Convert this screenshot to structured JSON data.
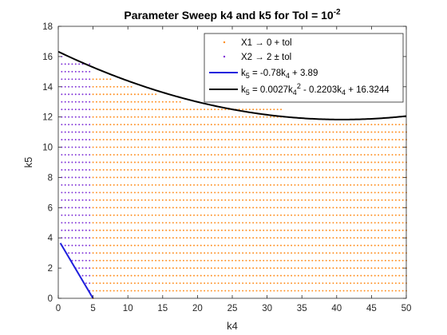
{
  "chart_data": {
    "type": "scatter",
    "title": {
      "main": "Parameter Sweep k4 and k5 for Tol = 10",
      "sup": "-2"
    },
    "xlabel": "k4",
    "ylabel": "k5",
    "xlim": [
      0,
      50
    ],
    "ylim": [
      0,
      18
    ],
    "xticks": [
      "0",
      "5",
      "10",
      "15",
      "20",
      "25",
      "30",
      "35",
      "40",
      "45",
      "50"
    ],
    "yticks": [
      "0",
      "2",
      "4",
      "6",
      "8",
      "10",
      "12",
      "14",
      "16",
      "18"
    ],
    "grid": false,
    "legend_position": "top-right",
    "colors": {
      "orange": "#ff8c1a",
      "purple": "#7e2fd6",
      "blue": "#1f1fdd",
      "black": "#000000"
    },
    "series": [
      {
        "name": "X1 → 0 + tol",
        "kind": "markers",
        "color": "#ff8c1a",
        "x_start": 5,
        "x_end": 50,
        "x_step": 0.5,
        "y_step": 0.5,
        "y_min_rule": "0 at k4 = 5, otherwise 0.5",
        "y_max_by_k4": [
          {
            "k4_from": 5,
            "k4_to": 5,
            "k5_max": 14.5
          },
          {
            "k4_from": 5.5,
            "k4_to": 32,
            "k5_max": 12.5
          },
          {
            "k4_from": 32.5,
            "k4_to": 50,
            "k5_max": 11.5
          }
        ],
        "upper_extra": {
          "k4_from": 5.5,
          "k4_to": 27.5,
          "k5_max": 15.0,
          "cutoff": "below the quadratic fit curve"
        }
      },
      {
        "name": "X2 → 2 ± tol",
        "kind": "markers",
        "color": "#7e2fd6",
        "x_start": 0.5,
        "x_end": 4.5,
        "x_step": 0.5,
        "y_step": 0.5,
        "y_min_rule": "on or above the linear fit line",
        "y_max_by_k4": [
          {
            "k4_from": 0.5,
            "k4_to": 0.5,
            "k5_max": 16.0
          },
          {
            "k4_from": 1.0,
            "k4_to": 4.5,
            "k5_max": 15.5
          }
        ]
      },
      {
        "name": "k5 = -0.78k4 + 3.89",
        "legend_parts": [
          [
            "k",
            "normal"
          ],
          [
            "5",
            "sub"
          ],
          [
            " = -0.78k",
            "normal"
          ],
          [
            "4",
            "sub"
          ],
          [
            " + 3.89",
            "normal"
          ]
        ],
        "kind": "line",
        "color": "#1f1fdd",
        "coefficients": {
          "slope": -0.78,
          "intercept": 3.89
        },
        "x_range": [
          0.3,
          5.0
        ]
      },
      {
        "name": "k5 = 0.0027k4^2 - 0.2203k4 + 16.3244",
        "legend_parts": [
          [
            "k",
            "normal"
          ],
          [
            "5",
            "sub"
          ],
          [
            " = 0.0027k",
            "normal"
          ],
          [
            "4",
            "sub"
          ],
          [
            "2",
            "sup"
          ],
          [
            " - 0.2203k",
            "normal"
          ],
          [
            "4",
            "sub"
          ],
          [
            " + 16.3244",
            "normal"
          ]
        ],
        "kind": "line",
        "color": "#000000",
        "coefficients": {
          "a": 0.0027,
          "b": -0.2203,
          "c": 16.3244
        },
        "x_range": [
          0,
          50
        ]
      }
    ]
  }
}
